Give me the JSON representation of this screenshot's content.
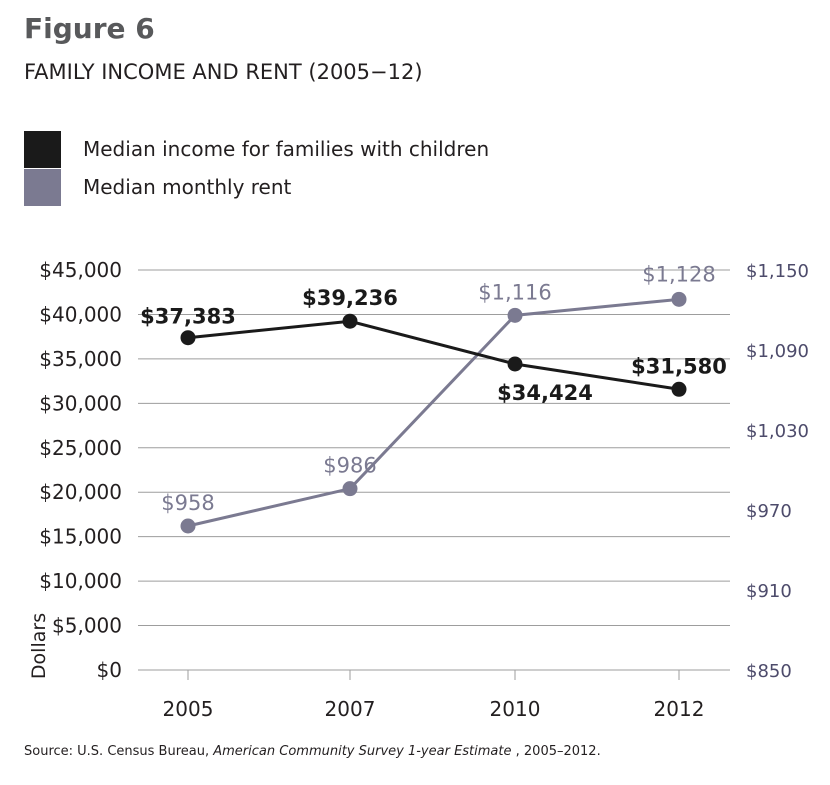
{
  "figure": {
    "label": "Figure 6",
    "title": "FAMILY INCOME AND RENT (2005−12)"
  },
  "legend": [
    {
      "label": "Median income for families with children",
      "color": "#1a1a1a"
    },
    {
      "label": "Median monthly rent",
      "color": "#7b7a91"
    }
  ],
  "source": {
    "prefix": "Source: U.S. Census Bureau, ",
    "title": "American Community Survey 1-year Estimate",
    "suffix": " , 2005–2012."
  },
  "colors": {
    "income": "#1a1a1a",
    "rent": "#7b7a91",
    "grid": "#9d9d9d",
    "axis_text": "#231f20",
    "right_axis_text": "#4d4b6b"
  },
  "chart_data": {
    "type": "line",
    "categories": [
      "2005",
      "2007",
      "2010",
      "2012"
    ],
    "ylabel": "Dollars",
    "y_left": {
      "range": [
        0,
        45000
      ],
      "ticks": [
        0,
        5000,
        10000,
        15000,
        20000,
        25000,
        30000,
        35000,
        40000,
        45000
      ],
      "tick_labels": [
        "$0",
        "$5,000",
        "$10,000",
        "$15,000",
        "$20,000",
        "$25,000",
        "$30,000",
        "$35,000",
        "$40,000",
        "$45,000"
      ]
    },
    "y_right": {
      "range": [
        850,
        1150
      ],
      "ticks": [
        850,
        910,
        970,
        1030,
        1090,
        1150
      ],
      "tick_labels": [
        "$850",
        "$910",
        "$970",
        "$1,030",
        "$1,090",
        "$1,150"
      ]
    },
    "series": [
      {
        "name": "Median income for families with children",
        "axis": "left",
        "values": [
          37383,
          39236,
          34424,
          31580
        ],
        "labels": [
          "$37,383",
          "$39,236",
          "$34,424",
          "$31,580"
        ]
      },
      {
        "name": "Median monthly rent",
        "axis": "right",
        "values": [
          958,
          986,
          1116,
          1128
        ],
        "labels": [
          "$958",
          "$986",
          "$1,116",
          "$1,128"
        ]
      }
    ]
  }
}
